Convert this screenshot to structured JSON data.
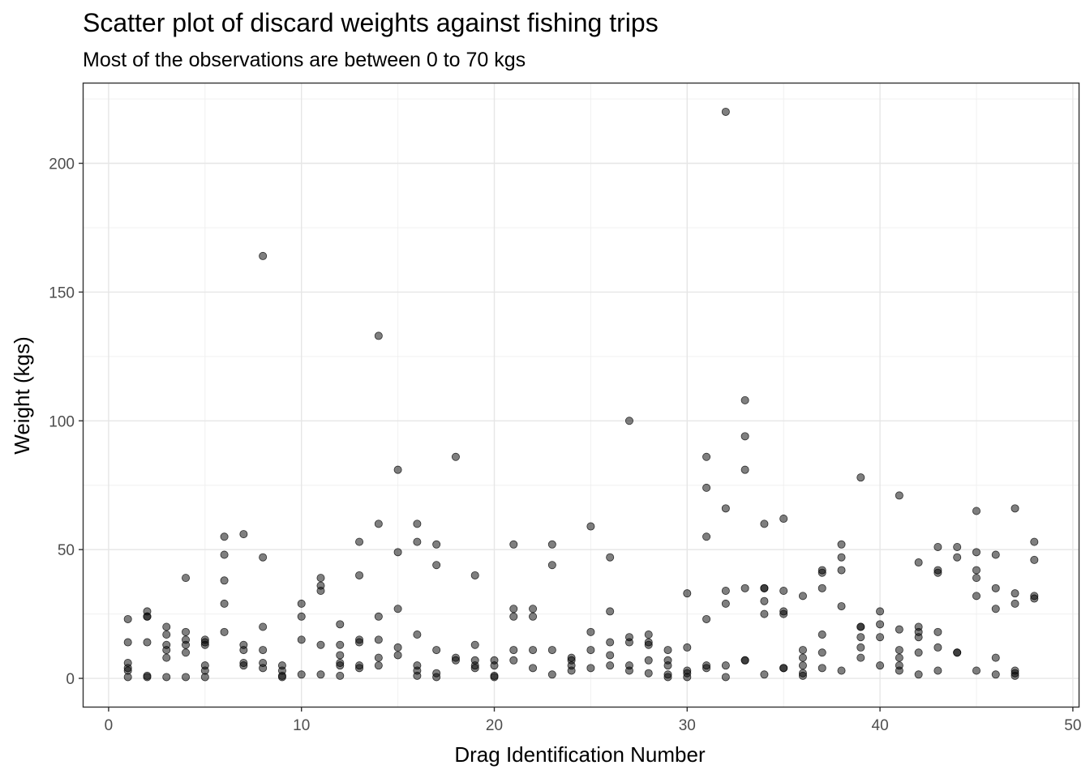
{
  "chart_data": {
    "type": "scatter",
    "title": "Scatter plot of discard weights against fishing trips",
    "subtitle": "Most of the observations are between 0 to 70 kgs",
    "xlabel": "Drag Identification Number",
    "ylabel": "Weight (kgs)",
    "xlim": [
      -1.3,
      50.3
    ],
    "ylim": [
      -11,
      231
    ],
    "x_ticks": [
      0,
      10,
      20,
      30,
      40,
      50
    ],
    "y_ticks": [
      0,
      50,
      100,
      150,
      200
    ],
    "grid": true,
    "point_color": "#000000",
    "point_opacity": 0.5,
    "points": [
      [
        1,
        23
      ],
      [
        1,
        14
      ],
      [
        1,
        6
      ],
      [
        1,
        4
      ],
      [
        1,
        3
      ],
      [
        1,
        0.5
      ],
      [
        2,
        26
      ],
      [
        2,
        24
      ],
      [
        2,
        24
      ],
      [
        2,
        14
      ],
      [
        2,
        1
      ],
      [
        2,
        0.5
      ],
      [
        3,
        20
      ],
      [
        3,
        17
      ],
      [
        3,
        13
      ],
      [
        3,
        11
      ],
      [
        3,
        8
      ],
      [
        3,
        0.5
      ],
      [
        4,
        39
      ],
      [
        4,
        18
      ],
      [
        4,
        15
      ],
      [
        4,
        13
      ],
      [
        4,
        10
      ],
      [
        4,
        0.5
      ],
      [
        5,
        15
      ],
      [
        5,
        14
      ],
      [
        5,
        13
      ],
      [
        5,
        5
      ],
      [
        5,
        3
      ],
      [
        5,
        0.5
      ],
      [
        6,
        55
      ],
      [
        6,
        48
      ],
      [
        6,
        38
      ],
      [
        6,
        29
      ],
      [
        6,
        18
      ],
      [
        7,
        56
      ],
      [
        7,
        13
      ],
      [
        7,
        11
      ],
      [
        7,
        6
      ],
      [
        7,
        5
      ],
      [
        8,
        164
      ],
      [
        8,
        47
      ],
      [
        8,
        20
      ],
      [
        8,
        11
      ],
      [
        8,
        6
      ],
      [
        8,
        4
      ],
      [
        9,
        5
      ],
      [
        9,
        3
      ],
      [
        9,
        1
      ],
      [
        9,
        0.5
      ],
      [
        10,
        29
      ],
      [
        10,
        24
      ],
      [
        10,
        15
      ],
      [
        10,
        1.5
      ],
      [
        11,
        39
      ],
      [
        11,
        36
      ],
      [
        11,
        34
      ],
      [
        11,
        13
      ],
      [
        11,
        1.5
      ],
      [
        12,
        21
      ],
      [
        12,
        13
      ],
      [
        12,
        9
      ],
      [
        12,
        6
      ],
      [
        12,
        5
      ],
      [
        12,
        1
      ],
      [
        13,
        53
      ],
      [
        13,
        40
      ],
      [
        13,
        15
      ],
      [
        13,
        14
      ],
      [
        13,
        5
      ],
      [
        13,
        4
      ],
      [
        14,
        133
      ],
      [
        14,
        60
      ],
      [
        14,
        24
      ],
      [
        14,
        15
      ],
      [
        14,
        8
      ],
      [
        14,
        5
      ],
      [
        15,
        81
      ],
      [
        15,
        49
      ],
      [
        15,
        27
      ],
      [
        15,
        12
      ],
      [
        15,
        9
      ],
      [
        16,
        60
      ],
      [
        16,
        53
      ],
      [
        16,
        17
      ],
      [
        16,
        5
      ],
      [
        16,
        3
      ],
      [
        16,
        1
      ],
      [
        17,
        52
      ],
      [
        17,
        44
      ],
      [
        17,
        11
      ],
      [
        17,
        2
      ],
      [
        17,
        0.5
      ],
      [
        18,
        86
      ],
      [
        18,
        8
      ],
      [
        18,
        7
      ],
      [
        19,
        40
      ],
      [
        19,
        13
      ],
      [
        19,
        7
      ],
      [
        19,
        5
      ],
      [
        19,
        4
      ],
      [
        20,
        7
      ],
      [
        20,
        5
      ],
      [
        20,
        1
      ],
      [
        20,
        0.5
      ],
      [
        21,
        52
      ],
      [
        21,
        27
      ],
      [
        21,
        24
      ],
      [
        21,
        11
      ],
      [
        21,
        7
      ],
      [
        22,
        27
      ],
      [
        22,
        24
      ],
      [
        22,
        11
      ],
      [
        22,
        4
      ],
      [
        23,
        52
      ],
      [
        23,
        44
      ],
      [
        23,
        11
      ],
      [
        23,
        1.5
      ],
      [
        24,
        8
      ],
      [
        24,
        7
      ],
      [
        24,
        5
      ],
      [
        24,
        3
      ],
      [
        25,
        59
      ],
      [
        25,
        18
      ],
      [
        25,
        11
      ],
      [
        25,
        4
      ],
      [
        26,
        47
      ],
      [
        26,
        26
      ],
      [
        26,
        14
      ],
      [
        26,
        9
      ],
      [
        26,
        5
      ],
      [
        27,
        100
      ],
      [
        27,
        16
      ],
      [
        27,
        14
      ],
      [
        27,
        5
      ],
      [
        27,
        3
      ],
      [
        28,
        17
      ],
      [
        28,
        14
      ],
      [
        28,
        13
      ],
      [
        28,
        7
      ],
      [
        28,
        2
      ],
      [
        29,
        11
      ],
      [
        29,
        7
      ],
      [
        29,
        5
      ],
      [
        29,
        1.5
      ],
      [
        29,
        0.5
      ],
      [
        30,
        33
      ],
      [
        30,
        12
      ],
      [
        30,
        3
      ],
      [
        30,
        2
      ],
      [
        30,
        0.5
      ],
      [
        31,
        86
      ],
      [
        31,
        74
      ],
      [
        31,
        55
      ],
      [
        31,
        23
      ],
      [
        31,
        5
      ],
      [
        31,
        4
      ],
      [
        32,
        220
      ],
      [
        32,
        66
      ],
      [
        32,
        34
      ],
      [
        32,
        29
      ],
      [
        32,
        5
      ],
      [
        32,
        0.5
      ],
      [
        33,
        108
      ],
      [
        33,
        94
      ],
      [
        33,
        81
      ],
      [
        33,
        35
      ],
      [
        33,
        7
      ],
      [
        33,
        7
      ],
      [
        34,
        60
      ],
      [
        34,
        35
      ],
      [
        34,
        35
      ],
      [
        34,
        30
      ],
      [
        34,
        25
      ],
      [
        34,
        1.5
      ],
      [
        35,
        62
      ],
      [
        35,
        34
      ],
      [
        35,
        26
      ],
      [
        35,
        25
      ],
      [
        35,
        4
      ],
      [
        35,
        4
      ],
      [
        36,
        32
      ],
      [
        36,
        11
      ],
      [
        36,
        8
      ],
      [
        36,
        5
      ],
      [
        36,
        2
      ],
      [
        36,
        1
      ],
      [
        37,
        42
      ],
      [
        37,
        41
      ],
      [
        37,
        35
      ],
      [
        37,
        17
      ],
      [
        37,
        10
      ],
      [
        37,
        4
      ],
      [
        38,
        52
      ],
      [
        38,
        47
      ],
      [
        38,
        42
      ],
      [
        38,
        28
      ],
      [
        38,
        3
      ],
      [
        39,
        78
      ],
      [
        39,
        20
      ],
      [
        39,
        20
      ],
      [
        39,
        16
      ],
      [
        39,
        12
      ],
      [
        39,
        8
      ],
      [
        40,
        26
      ],
      [
        40,
        21
      ],
      [
        40,
        16
      ],
      [
        40,
        5
      ],
      [
        41,
        71
      ],
      [
        41,
        19
      ],
      [
        41,
        11
      ],
      [
        41,
        8
      ],
      [
        41,
        5
      ],
      [
        41,
        3
      ],
      [
        42,
        45
      ],
      [
        42,
        20
      ],
      [
        42,
        18
      ],
      [
        42,
        16
      ],
      [
        42,
        10
      ],
      [
        42,
        1.5
      ],
      [
        43,
        51
      ],
      [
        43,
        42
      ],
      [
        43,
        41
      ],
      [
        43,
        18
      ],
      [
        43,
        12
      ],
      [
        43,
        3
      ],
      [
        44,
        51
      ],
      [
        44,
        47
      ],
      [
        44,
        10
      ],
      [
        44,
        10
      ],
      [
        45,
        65
      ],
      [
        45,
        49
      ],
      [
        45,
        42
      ],
      [
        45,
        39
      ],
      [
        45,
        32
      ],
      [
        45,
        3
      ],
      [
        46,
        48
      ],
      [
        46,
        35
      ],
      [
        46,
        27
      ],
      [
        46,
        8
      ],
      [
        46,
        1.5
      ],
      [
        47,
        66
      ],
      [
        47,
        33
      ],
      [
        47,
        29
      ],
      [
        47,
        3
      ],
      [
        47,
        2
      ],
      [
        47,
        1
      ],
      [
        48,
        53
      ],
      [
        48,
        46
      ],
      [
        48,
        32
      ],
      [
        48,
        31
      ]
    ]
  }
}
